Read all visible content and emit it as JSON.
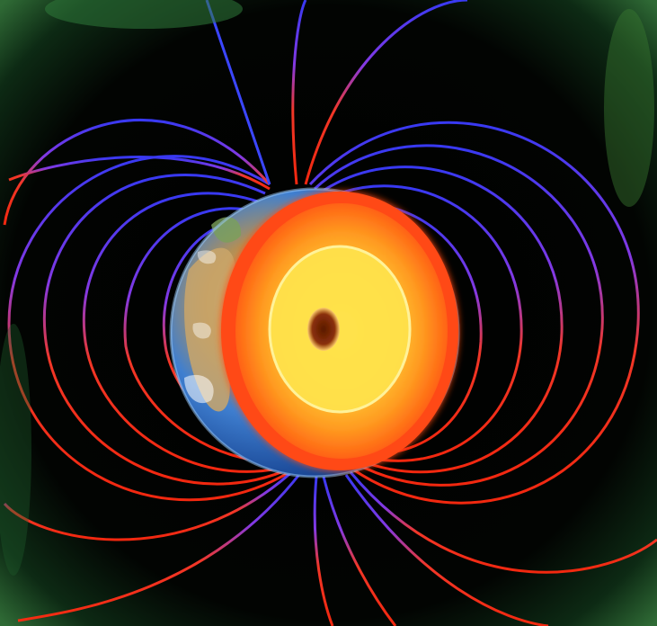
{
  "image": {
    "subject": "earth-magnetic-field-cutaway",
    "colors": {
      "background": "#020302",
      "vignette_green": "#1f5a2a",
      "field_north": "#5a3cff",
      "field_south": "#ff2a12",
      "earth_ocean": "#2a6fd0",
      "earth_land": "#c9a36a",
      "crust_outer": "#ff5a14",
      "mantle": "#ff8a1c",
      "outer_core": "#ffd23a",
      "inner_core": "#7a2406"
    }
  }
}
